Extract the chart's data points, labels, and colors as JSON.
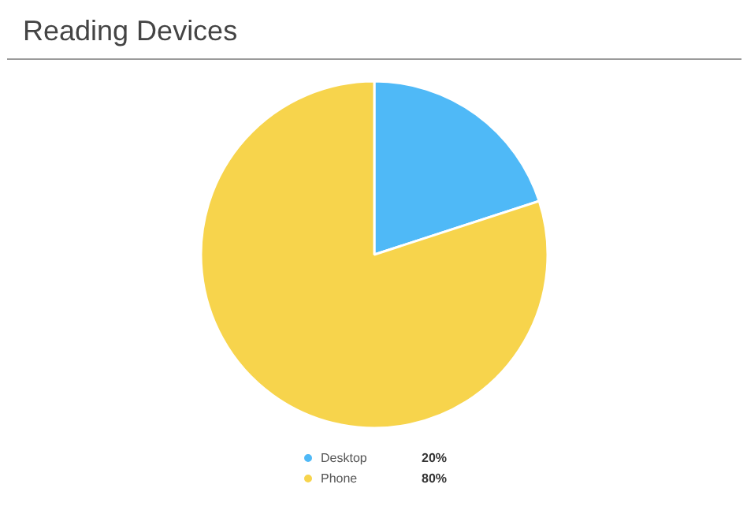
{
  "chart_data": {
    "type": "pie",
    "title": "Reading Devices",
    "categories": [
      "Desktop",
      "Phone"
    ],
    "values": [
      20,
      80
    ],
    "colors": [
      "#4fb9f7",
      "#f7d44c"
    ],
    "value_labels": [
      "20%",
      "80%"
    ],
    "legend": "bottom"
  }
}
